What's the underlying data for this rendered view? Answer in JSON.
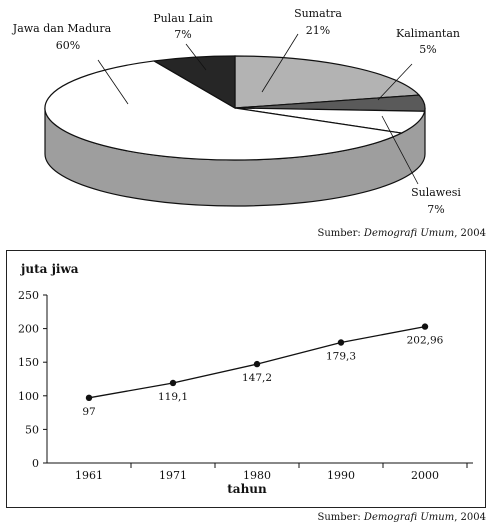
{
  "chart_data": [
    {
      "type": "pie",
      "title": "",
      "slices": [
        {
          "name": "Jawa dan Madura",
          "label": "Jawa dan Madura",
          "value_label": "60%",
          "value": 60,
          "color": "#ffffff"
        },
        {
          "name": "Pulau Lain",
          "label": "Pulau Lain",
          "value_label": "7%",
          "value": 7,
          "color": "#262626"
        },
        {
          "name": "Sumatra",
          "label": "Sumatra",
          "value_label": "21%",
          "value": 21,
          "color": "#b3b3b3"
        },
        {
          "name": "Kalimantan",
          "label": "Kalimantan",
          "value_label": "5%",
          "value": 5,
          "color": "#5a5a5a"
        },
        {
          "name": "Sulawesi",
          "label": "Sulawesi",
          "value_label": "7%",
          "value": 7,
          "color": "#ffffff"
        }
      ],
      "side_color": "#9e9e9e",
      "source_prefix": "Sumber: ",
      "source_title": "Demografi Umum",
      "source_suffix": ", 2004"
    },
    {
      "type": "line",
      "title": "",
      "ylabel": "juta jiwa",
      "xlabel": "tahun",
      "ylim": [
        0,
        250
      ],
      "yticks": [
        0,
        50,
        100,
        150,
        200,
        250
      ],
      "categories": [
        "1961",
        "1971",
        "1980",
        "1990",
        "2000"
      ],
      "x": [
        1961,
        1971,
        1980,
        1990,
        2000
      ],
      "values": [
        97,
        119.1,
        147.2,
        179.3,
        202.96
      ],
      "value_labels": [
        "97",
        "119,1",
        "147,2",
        "179,3",
        "202,96"
      ],
      "grid": false,
      "line_color": "#111111",
      "source_prefix": "Sumber: ",
      "source_title": "Demografi Umum",
      "source_suffix": ", 2004"
    }
  ]
}
